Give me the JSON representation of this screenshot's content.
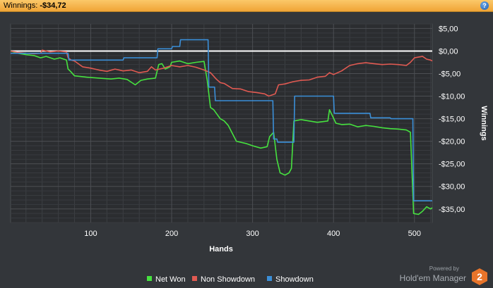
{
  "header": {
    "label": "Winnings:",
    "value": "-$34,72",
    "help_icon": "help-icon"
  },
  "branding": {
    "powered_by": "Powered by",
    "name": "Hold'em Manager",
    "logo_text": "2",
    "logo_color": "#e8742a"
  },
  "chart_data": {
    "type": "line",
    "xlabel": "Hands",
    "ylabel": "Winnings",
    "xlim": [
      1,
      522
    ],
    "ylim": [
      -38,
      6
    ],
    "x_ticks": [
      100,
      200,
      300,
      400,
      500
    ],
    "x_tick_labels": [
      "100",
      "200",
      "300",
      "400",
      "500"
    ],
    "y_ticks": [
      5,
      0,
      -5,
      -10,
      -15,
      -20,
      -25,
      -30,
      -35
    ],
    "y_tick_labels": [
      "$5,00",
      "$0,00",
      "-$5,00",
      "-$10,00",
      "-$15,00",
      "-$20,00",
      "-$25,00",
      "-$30,00",
      "-$35,00"
    ],
    "grid": true,
    "zero_line": true,
    "legend_position": "bottom",
    "series": [
      {
        "name": "Net Won",
        "color": "#46e23f",
        "points": [
          [
            1,
            0
          ],
          [
            10,
            -0.5
          ],
          [
            20,
            -0.8
          ],
          [
            30,
            -1
          ],
          [
            38,
            -1.5
          ],
          [
            45,
            -1.2
          ],
          [
            55,
            -1.8
          ],
          [
            62,
            -1.5
          ],
          [
            70,
            -2
          ],
          [
            72,
            -4
          ],
          [
            75,
            -4.5
          ],
          [
            80,
            -5.5
          ],
          [
            95,
            -5.8
          ],
          [
            110,
            -6
          ],
          [
            125,
            -6.2
          ],
          [
            135,
            -6
          ],
          [
            145,
            -6.3
          ],
          [
            155,
            -7.5
          ],
          [
            162,
            -6.5
          ],
          [
            170,
            -6.2
          ],
          [
            180,
            -6
          ],
          [
            184,
            -3
          ],
          [
            188,
            -2.8
          ],
          [
            192,
            -4
          ],
          [
            198,
            -3.5
          ],
          [
            200,
            -2.5
          ],
          [
            210,
            -2.2
          ],
          [
            220,
            -2.8
          ],
          [
            230,
            -2.5
          ],
          [
            240,
            -2.3
          ],
          [
            244,
            -6.5
          ],
          [
            248,
            -12.5
          ],
          [
            252,
            -13
          ],
          [
            256,
            -14
          ],
          [
            260,
            -15
          ],
          [
            265,
            -15.5
          ],
          [
            270,
            -16.5
          ],
          [
            280,
            -20
          ],
          [
            292,
            -20.5
          ],
          [
            300,
            -21
          ],
          [
            310,
            -21.5
          ],
          [
            318,
            -21.2
          ],
          [
            321,
            -19
          ],
          [
            326,
            -18
          ],
          [
            330,
            -24
          ],
          [
            334,
            -27
          ],
          [
            340,
            -27.5
          ],
          [
            345,
            -27
          ],
          [
            348,
            -26
          ],
          [
            351,
            -15.5
          ],
          [
            360,
            -15.2
          ],
          [
            370,
            -15.5
          ],
          [
            380,
            -15.8
          ],
          [
            393,
            -15.5
          ],
          [
            395,
            -13
          ],
          [
            399,
            -14.5
          ],
          [
            403,
            -16
          ],
          [
            410,
            -16.3
          ],
          [
            420,
            -16.2
          ],
          [
            430,
            -16.8
          ],
          [
            440,
            -16.5
          ],
          [
            450,
            -16.7
          ],
          [
            460,
            -17
          ],
          [
            470,
            -17.2
          ],
          [
            480,
            -17.3
          ],
          [
            490,
            -17.5
          ],
          [
            495,
            -18
          ],
          [
            499,
            -36
          ],
          [
            505,
            -36.2
          ],
          [
            510,
            -35.5
          ],
          [
            515,
            -34.5
          ],
          [
            520,
            -35
          ],
          [
            522,
            -34.72
          ]
        ]
      },
      {
        "name": "Non Showdown",
        "color": "#e15a52",
        "points": [
          [
            1,
            0
          ],
          [
            10,
            -0.3
          ],
          [
            20,
            -0.5
          ],
          [
            30,
            -0.6
          ],
          [
            38,
            -0.5
          ],
          [
            40,
            0.2
          ],
          [
            50,
            -0.2
          ],
          [
            60,
            0
          ],
          [
            70,
            -0.2
          ],
          [
            72,
            -1.5
          ],
          [
            76,
            -2
          ],
          [
            80,
            -2.2
          ],
          [
            90,
            -3.5
          ],
          [
            100,
            -3.8
          ],
          [
            110,
            -4.2
          ],
          [
            120,
            -4.5
          ],
          [
            130,
            -4
          ],
          [
            140,
            -4.4
          ],
          [
            150,
            -4.2
          ],
          [
            160,
            -4.8
          ],
          [
            170,
            -4.5
          ],
          [
            175,
            -3.5
          ],
          [
            180,
            -4.2
          ],
          [
            190,
            -3.8
          ],
          [
            200,
            -3.2
          ],
          [
            210,
            -3.5
          ],
          [
            220,
            -3.2
          ],
          [
            230,
            -3.6
          ],
          [
            240,
            -4.2
          ],
          [
            248,
            -4.8
          ],
          [
            255,
            -6.2
          ],
          [
            260,
            -7
          ],
          [
            265,
            -7.2
          ],
          [
            275,
            -8.3
          ],
          [
            285,
            -8.4
          ],
          [
            295,
            -9
          ],
          [
            305,
            -9.2
          ],
          [
            315,
            -9.5
          ],
          [
            320,
            -10
          ],
          [
            328,
            -9.5
          ],
          [
            332,
            -7.5
          ],
          [
            340,
            -7.3
          ],
          [
            350,
            -6.8
          ],
          [
            360,
            -6.5
          ],
          [
            370,
            -6.4
          ],
          [
            380,
            -5.8
          ],
          [
            390,
            -5.6
          ],
          [
            395,
            -4.8
          ],
          [
            400,
            -5.2
          ],
          [
            410,
            -4.4
          ],
          [
            420,
            -3.2
          ],
          [
            430,
            -2.8
          ],
          [
            440,
            -2.6
          ],
          [
            450,
            -2.8
          ],
          [
            460,
            -3
          ],
          [
            470,
            -2.9
          ],
          [
            480,
            -3
          ],
          [
            490,
            -3.2
          ],
          [
            495,
            -2.5
          ],
          [
            500,
            -1.5
          ],
          [
            510,
            -1.2
          ],
          [
            515,
            -1.8
          ],
          [
            520,
            -2
          ],
          [
            522,
            -2.2
          ]
        ]
      },
      {
        "name": "Showdown",
        "color": "#3b8fd8",
        "points": [
          [
            1,
            -0.5
          ],
          [
            50,
            -0.5
          ],
          [
            72,
            -0.5
          ],
          [
            73,
            -2
          ],
          [
            140,
            -2
          ],
          [
            141,
            -1.5
          ],
          [
            178,
            -1.5
          ],
          [
            182,
            -1.5
          ],
          [
            183,
            0.5
          ],
          [
            200,
            0.5
          ],
          [
            201,
            1
          ],
          [
            210,
            1
          ],
          [
            211,
            2.5
          ],
          [
            245,
            2.5
          ],
          [
            246,
            -8
          ],
          [
            253,
            -8
          ],
          [
            254,
            -11
          ],
          [
            320,
            -11
          ],
          [
            325,
            -11
          ],
          [
            326,
            -19.5
          ],
          [
            330,
            -19.5
          ],
          [
            331,
            -20.2
          ],
          [
            351,
            -20.2
          ],
          [
            352,
            -10
          ],
          [
            400,
            -10
          ],
          [
            401,
            -13.8
          ],
          [
            445,
            -13.8
          ],
          [
            446,
            -14.8
          ],
          [
            470,
            -14.8
          ],
          [
            471,
            -15
          ],
          [
            498,
            -15
          ],
          [
            499,
            -33.2
          ],
          [
            522,
            -33.2
          ]
        ]
      }
    ]
  }
}
